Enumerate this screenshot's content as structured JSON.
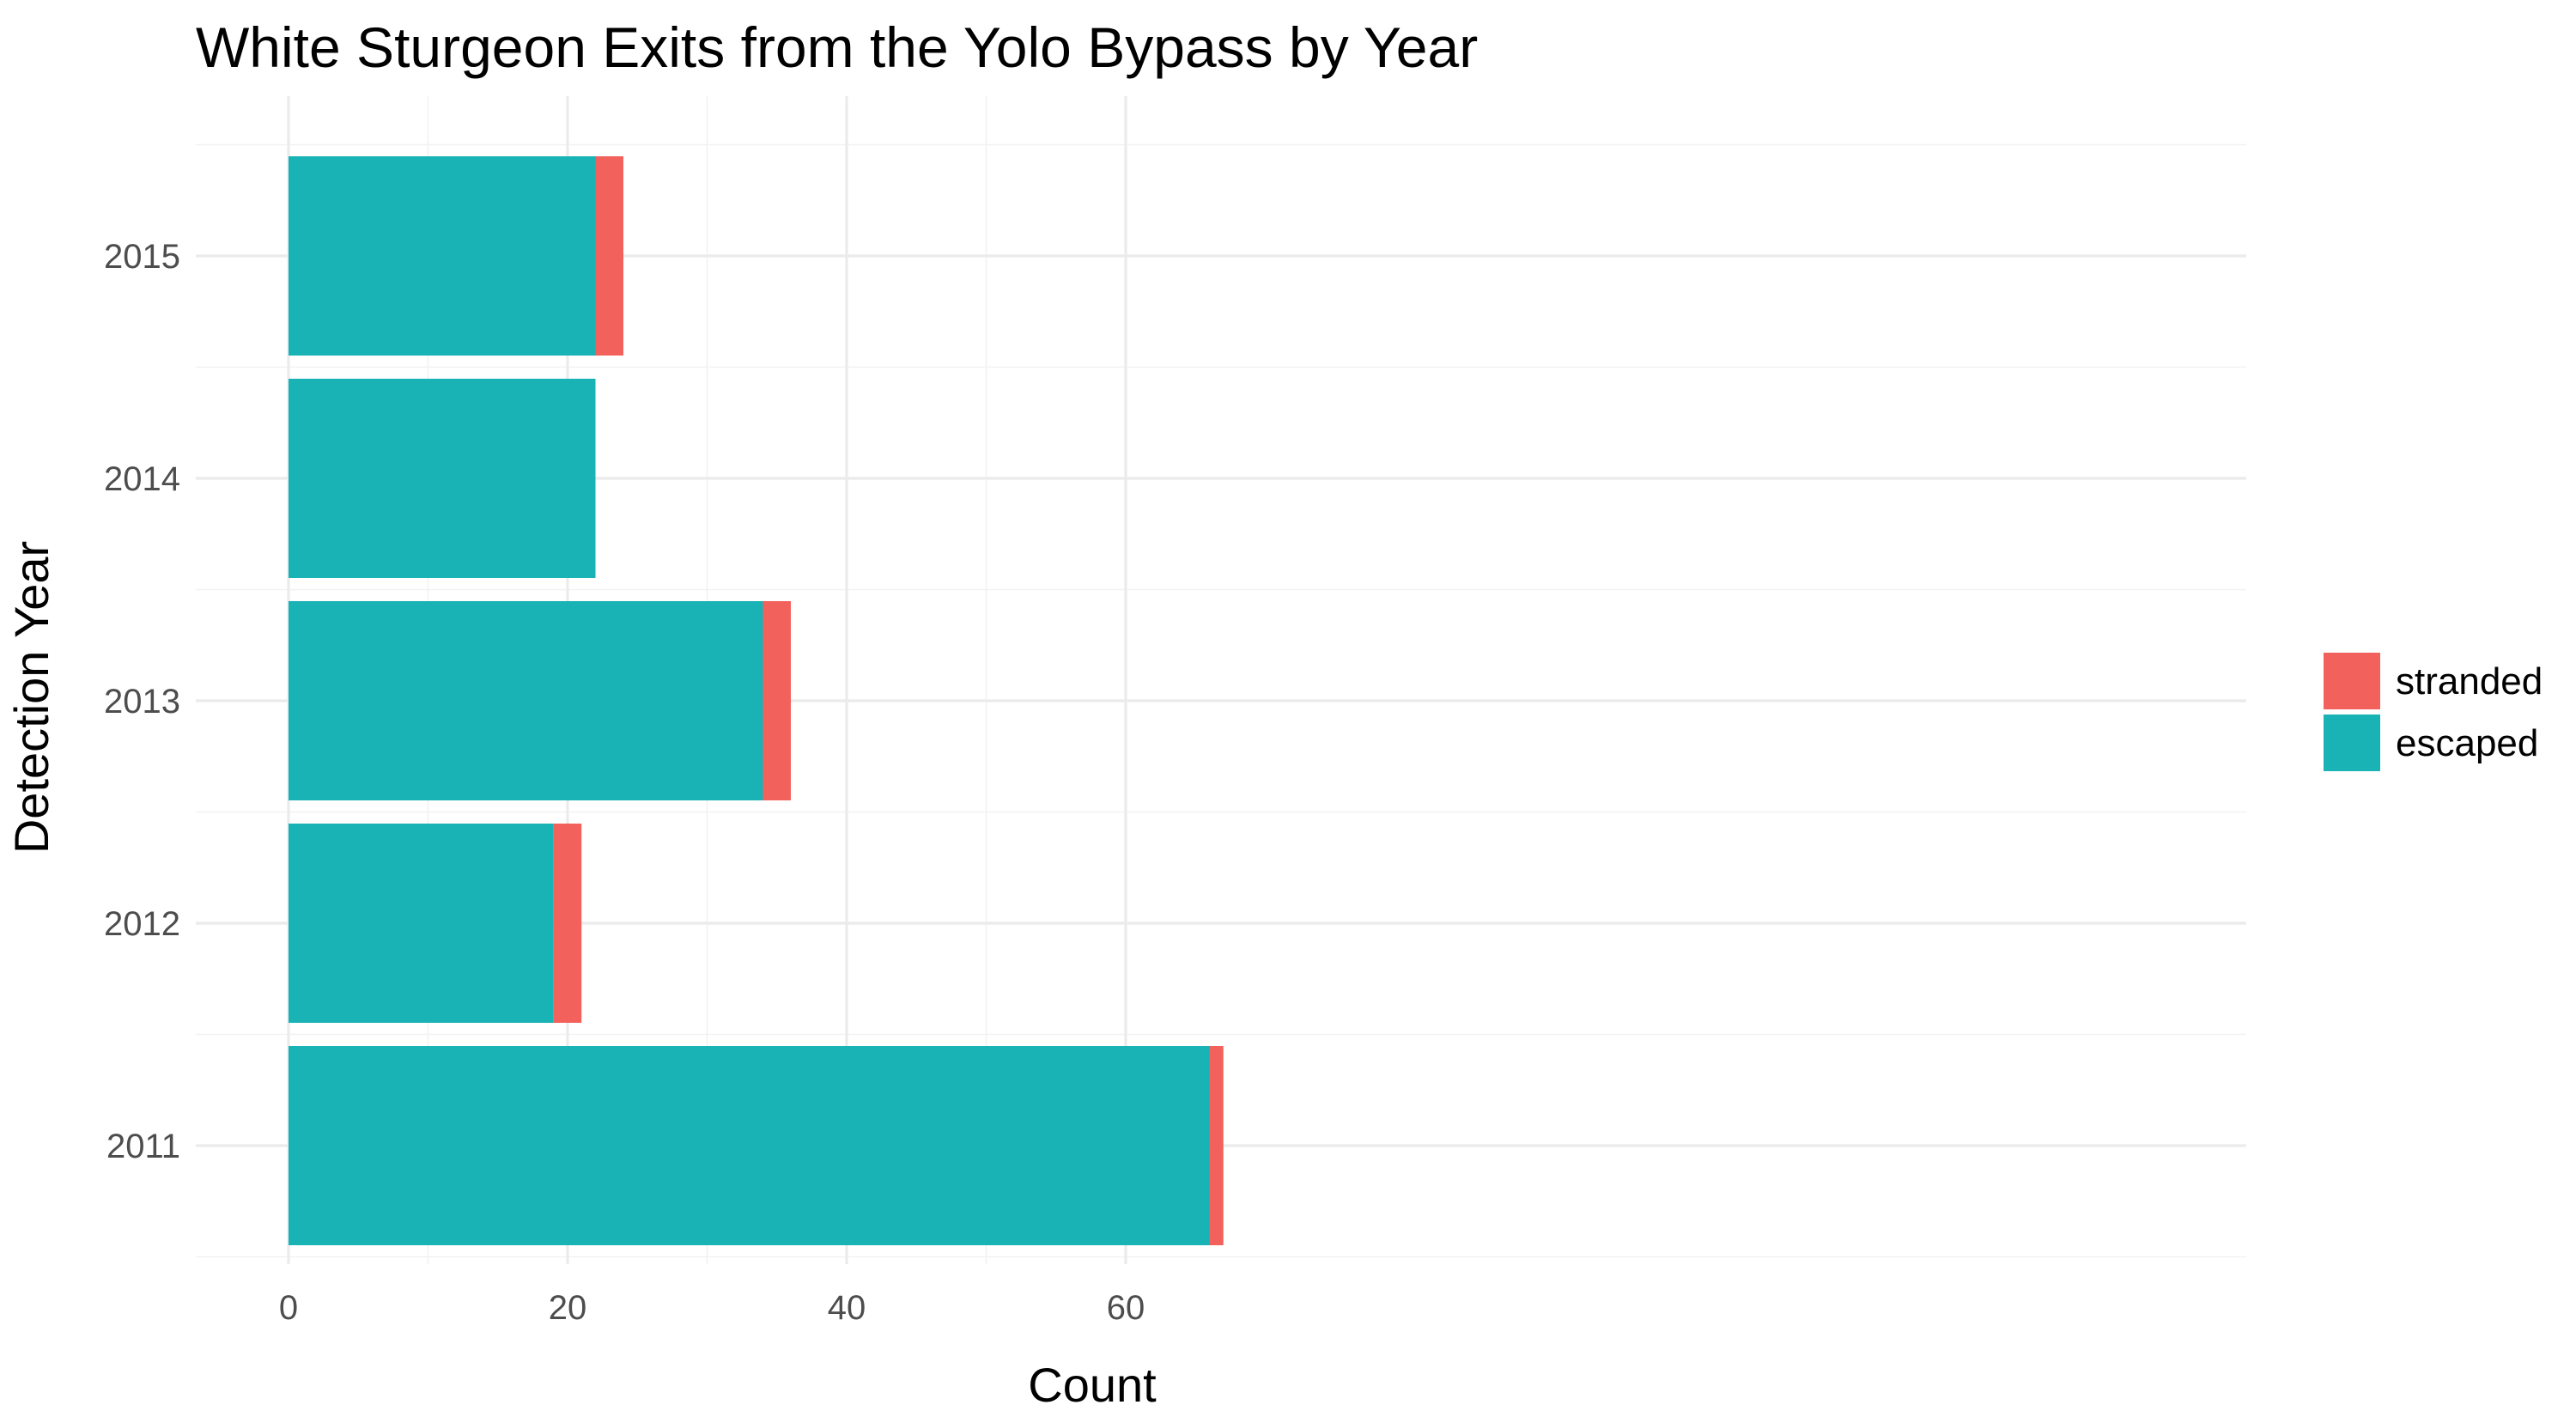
{
  "chart_data": {
    "type": "bar",
    "orientation": "horizontal",
    "stacked": true,
    "title": "White Sturgeon Exits from the Yolo Bypass by Year",
    "xlabel": "Count",
    "ylabel": "Detection Year",
    "categories": [
      "2011",
      "2012",
      "2013",
      "2014",
      "2015"
    ],
    "series": [
      {
        "name": "escaped",
        "color": "#19B2B5",
        "values": [
          66,
          19,
          34,
          22,
          22
        ]
      },
      {
        "name": "stranded",
        "color": "#F2615C",
        "values": [
          1,
          2,
          2,
          0,
          2
        ]
      }
    ],
    "legend_order": [
      "stranded",
      "escaped"
    ],
    "legend_position": "right",
    "xlim": [
      0,
      70
    ],
    "xticks": [
      0,
      20,
      40,
      60
    ],
    "grid": true
  }
}
